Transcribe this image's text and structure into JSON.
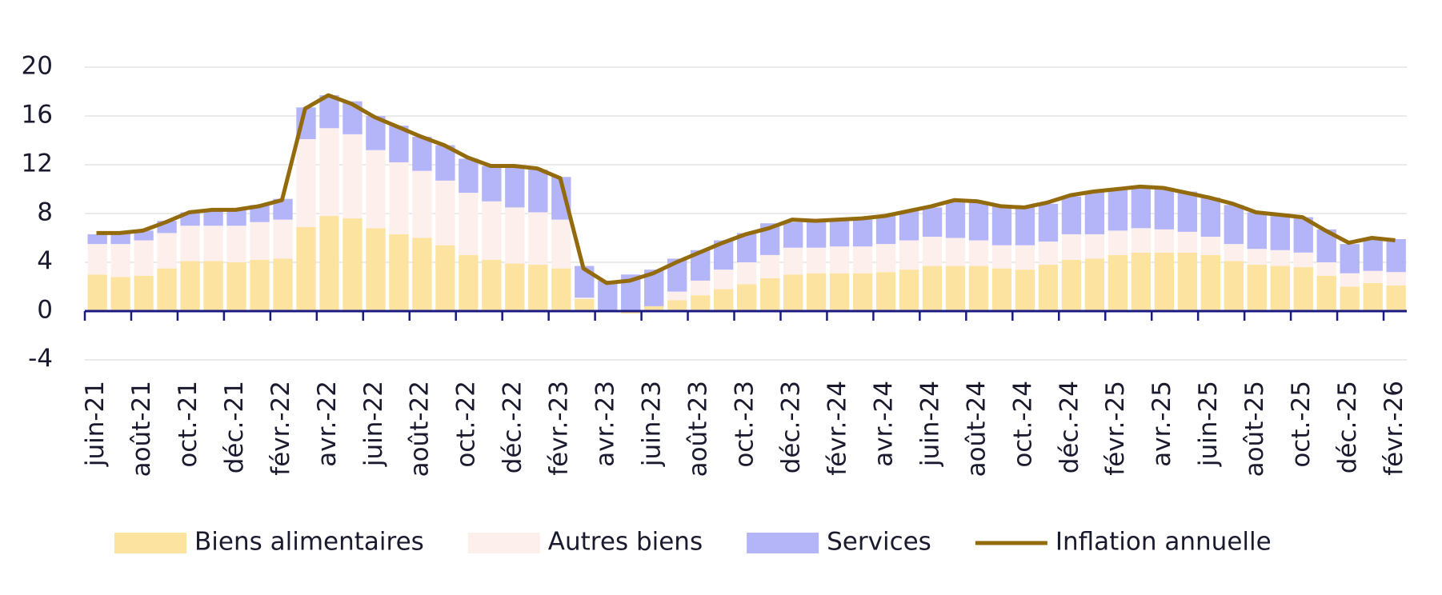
{
  "chart_data": {
    "type": "bar",
    "categories": [
      "juin-21",
      null,
      "août-21",
      null,
      "oct.-21",
      null,
      "déc.-21",
      null,
      "févr.-22",
      null,
      "avr.-22",
      null,
      "juin-22",
      null,
      "août-22",
      null,
      "oct.-22",
      null,
      "déc.-22",
      null,
      "févr.-23",
      null,
      "avr.-23",
      null,
      "juin-23",
      null,
      "août-23",
      null,
      "oct.-23",
      null,
      "déc.-23",
      null,
      "févr.-24",
      null,
      "avr.-24",
      null,
      "juin-24",
      null,
      "août-24",
      null,
      "oct.-24",
      null,
      "déc.-24",
      null,
      "févr.-25",
      null,
      "avr.-25",
      null,
      "juin-25",
      null,
      "août-25",
      null,
      "oct.-25",
      null,
      "déc.-25",
      null,
      "févr.-26"
    ],
    "series": [
      {
        "name": "Biens alimentaires",
        "color": "#fde3a0",
        "values": [
          3.0,
          2.8,
          2.9,
          3.5,
          4.1,
          4.1,
          4.0,
          4.2,
          4.3,
          6.9,
          7.8,
          7.6,
          6.8,
          6.3,
          6.0,
          5.4,
          4.6,
          4.2,
          3.9,
          3.8,
          3.5,
          1.0,
          0.1,
          -0.2,
          0.4,
          0.9,
          1.3,
          1.8,
          2.2,
          2.7,
          3.0,
          3.1,
          3.1,
          3.1,
          3.2,
          3.4,
          3.7,
          3.7,
          3.7,
          3.5,
          3.4,
          3.8,
          4.2,
          4.3,
          4.6,
          4.8,
          4.8,
          4.8,
          4.6,
          4.1,
          3.8,
          3.7,
          3.6,
          2.9,
          2.0,
          2.3,
          2.1
        ]
      },
      {
        "name": "Autres biens",
        "color": "#fdf0ec",
        "values": [
          2.5,
          2.7,
          2.9,
          2.9,
          2.9,
          2.9,
          3.0,
          3.1,
          3.2,
          7.2,
          7.2,
          6.9,
          6.4,
          5.9,
          5.5,
          5.3,
          5.1,
          4.8,
          4.6,
          4.3,
          4.0,
          0.1,
          0,
          0,
          0,
          0.7,
          1.2,
          1.6,
          1.8,
          1.9,
          2.2,
          2.1,
          2.2,
          2.2,
          2.3,
          2.4,
          2.4,
          2.3,
          2.1,
          1.9,
          2.0,
          1.9,
          2.1,
          2.0,
          2.0,
          2.0,
          1.9,
          1.7,
          1.5,
          1.4,
          1.3,
          1.3,
          1.2,
          1.1,
          1.1,
          1.0,
          1.1
        ]
      },
      {
        "name": "Services",
        "color": "#b4b4f8",
        "values": [
          0.8,
          0.9,
          0.8,
          1.0,
          1.1,
          1.3,
          1.3,
          1.4,
          1.7,
          2.6,
          2.7,
          2.7,
          2.8,
          3.0,
          2.8,
          2.9,
          2.8,
          2.9,
          3.3,
          3.5,
          3.5,
          2.6,
          2.4,
          3.0,
          3.0,
          2.7,
          2.5,
          2.4,
          2.4,
          2.6,
          2.1,
          2.2,
          2.3,
          2.3,
          2.3,
          2.4,
          2.4,
          3.0,
          3.2,
          3.2,
          3.1,
          3.1,
          3.1,
          3.5,
          3.4,
          3.4,
          3.4,
          3.3,
          3.2,
          3.2,
          3.0,
          3.0,
          2.9,
          2.7,
          2.4,
          2.6,
          2.7
        ]
      },
      {
        "name": "Inflation annuelle",
        "color": "#936a0c",
        "type": "line",
        "values": [
          6.4,
          6.4,
          6.6,
          7.3,
          8.1,
          8.3,
          8.3,
          8.6,
          9.1,
          16.6,
          17.7,
          17.0,
          15.9,
          15.1,
          14.3,
          13.6,
          12.6,
          11.9,
          11.9,
          11.7,
          10.9,
          3.5,
          2.3,
          2.5,
          3.1,
          4.0,
          4.8,
          5.6,
          6.3,
          6.8,
          7.5,
          7.4,
          7.5,
          7.6,
          7.8,
          8.2,
          8.6,
          9.1,
          9.0,
          8.6,
          8.5,
          8.9,
          9.5,
          9.8,
          10.0,
          10.2,
          10.1,
          9.7,
          9.3,
          8.8,
          8.1,
          7.9,
          7.7,
          6.6,
          5.6,
          6.0,
          5.8
        ]
      }
    ],
    "ylim": [
      -4,
      20
    ],
    "yticks": [
      -4,
      0,
      4,
      8,
      12,
      16,
      20
    ],
    "grid": true,
    "axis_color": "#1a1a80"
  }
}
